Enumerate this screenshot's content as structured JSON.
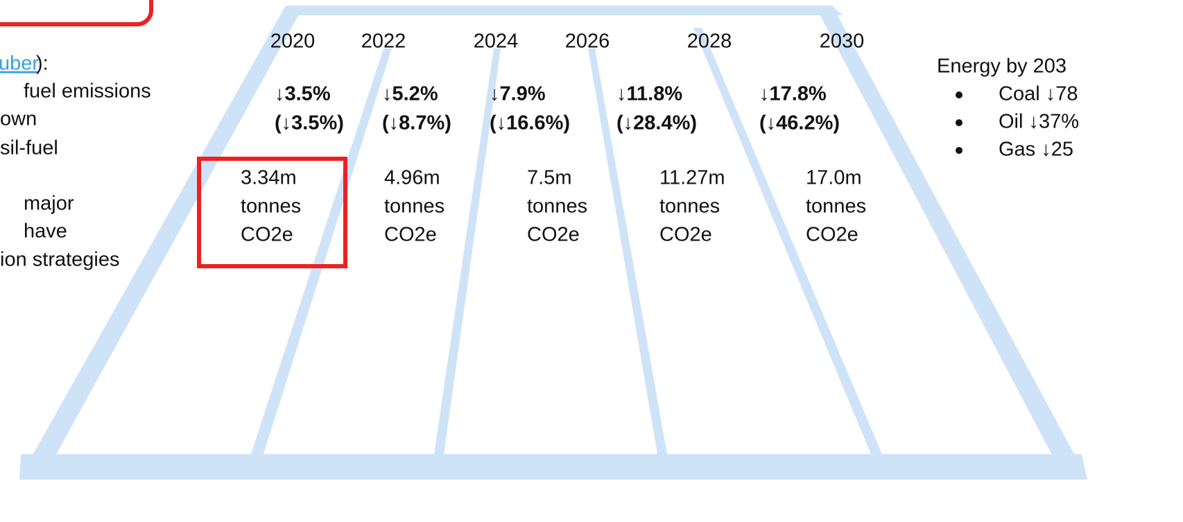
{
  "left_panel": {
    "link": "uber",
    "link_suffix": "):",
    "lines": [
      "fuel emissions",
      "own",
      "sil-fuel",
      "major",
      "have",
      "ion strategies"
    ]
  },
  "timeline": {
    "years": [
      "2020",
      "2022",
      "2024",
      "2026",
      "2028",
      "2030"
    ],
    "reductions": [
      {
        "annual": "↓3.5%",
        "cumulative": "(↓3.5%)"
      },
      {
        "annual": "↓5.2%",
        "cumulative": "(↓8.7%)"
      },
      {
        "annual": "↓7.9%",
        "cumulative": "(↓16.6%)"
      },
      {
        "annual": "↓11.8%",
        "cumulative": "(↓28.4%)"
      },
      {
        "annual": "↓17.8%",
        "cumulative": "(↓46.2%)"
      }
    ],
    "emissions": [
      [
        "3.34m",
        "tonnes",
        "CO2e"
      ],
      [
        "4.96m",
        "tonnes",
        "CO2e"
      ],
      [
        "7.5m",
        "tonnes",
        "CO2e"
      ],
      [
        "11.27m",
        "tonnes",
        "CO2e"
      ],
      [
        "17.0m",
        "tonnes",
        "CO2e"
      ]
    ]
  },
  "right_panel": {
    "title": "Energy by 203",
    "items": [
      "Coal ↓78",
      "Oil ↓37%",
      "Gas ↓25"
    ]
  }
}
